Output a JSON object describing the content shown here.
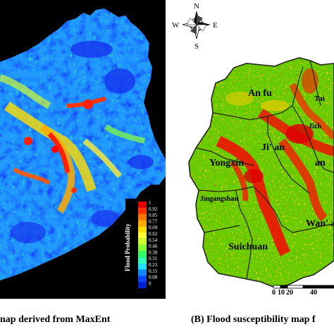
{
  "panel_a": {
    "caption": "nap derived from MaxEnt",
    "legend": {
      "title": "Flood Probability",
      "values": [
        "1",
        "0.92",
        "0.85",
        "0.77",
        "0.69",
        "0.62",
        "0.54",
        "0.46",
        "0.38",
        "0.31",
        "0.23",
        "0.15",
        "0.08",
        "0"
      ],
      "colors": [
        "#e60000",
        "#ff3300",
        "#ff7700",
        "#ffaa00",
        "#ffdd00",
        "#ffff33",
        "#ccff33",
        "#88ff33",
        "#33ff66",
        "#33ffbb",
        "#22ddff",
        "#1188ff",
        "#1144ff",
        "#0022cc"
      ]
    }
  },
  "panel_b": {
    "caption": "(B) Flood susceptibility map f",
    "compass": {
      "n": "N",
      "s": "S",
      "e": "E",
      "w": "W"
    },
    "scale": {
      "labels": [
        "0",
        "10",
        "20",
        "40"
      ]
    },
    "counties": [
      {
        "key": "anfu",
        "label": "An  fu"
      },
      {
        "key": "jian",
        "label": "Ji' an"
      },
      {
        "key": "yongxin",
        "label": "Yongxin"
      },
      {
        "key": "jingangshan",
        "label": "Jingangshan"
      },
      {
        "key": "wanan",
        "label": "Wan' an"
      },
      {
        "key": "suichuan",
        "label": "Suichuan"
      },
      {
        "key": "jizhou",
        "label": "Jizh"
      },
      {
        "key": "tai",
        "label": "Tai"
      },
      {
        "key": "an_e",
        "label": "an"
      }
    ],
    "colors": {
      "low": "#66cc00",
      "high": "#e60000",
      "mid": "#ffcc00",
      "boundary": "#222222"
    }
  }
}
